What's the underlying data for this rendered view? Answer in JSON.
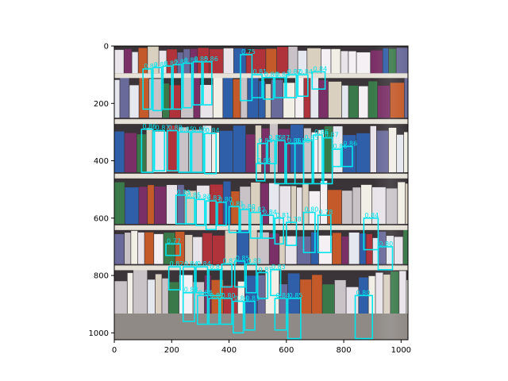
{
  "chart_data": {
    "type": "image-detections",
    "title": "",
    "xlabel": "",
    "ylabel": "",
    "xlim": [
      0,
      1024
    ],
    "ylim": [
      1024,
      0
    ],
    "x_ticks": [
      0,
      200,
      400,
      600,
      800,
      1000
    ],
    "y_ticks": [
      0,
      200,
      400,
      600,
      800,
      1000
    ],
    "box_color": "#00e5ee",
    "image_description_colors": {
      "shelf": "#e6e2d8",
      "shadow": "#2a2a30"
    },
    "detections": [
      {
        "x": 100,
        "y": 80,
        "w": 30,
        "h": 140,
        "score": "0.84"
      },
      {
        "x": 135,
        "y": 75,
        "w": 30,
        "h": 150,
        "score": "0.85"
      },
      {
        "x": 170,
        "y": 70,
        "w": 30,
        "h": 150,
        "score": "0.87"
      },
      {
        "x": 205,
        "y": 65,
        "w": 30,
        "h": 155,
        "score": "0.88"
      },
      {
        "x": 240,
        "y": 60,
        "w": 30,
        "h": 155,
        "score": "0.86"
      },
      {
        "x": 275,
        "y": 55,
        "w": 30,
        "h": 150,
        "score": "0.85"
      },
      {
        "x": 310,
        "y": 55,
        "w": 30,
        "h": 150,
        "score": "0.86"
      },
      {
        "x": 440,
        "y": 30,
        "w": 40,
        "h": 160,
        "score": "0.75"
      },
      {
        "x": 480,
        "y": 100,
        "w": 35,
        "h": 80,
        "score": "0.81"
      },
      {
        "x": 520,
        "y": 110,
        "w": 35,
        "h": 75,
        "score": "0.80"
      },
      {
        "x": 560,
        "y": 110,
        "w": 35,
        "h": 70,
        "score": "0.83"
      },
      {
        "x": 600,
        "y": 100,
        "w": 35,
        "h": 80,
        "score": "0.82"
      },
      {
        "x": 640,
        "y": 100,
        "w": 35,
        "h": 75,
        "score": "0.84"
      },
      {
        "x": 690,
        "y": 90,
        "w": 45,
        "h": 60,
        "score": "0.84"
      },
      {
        "x": 95,
        "y": 290,
        "w": 40,
        "h": 150,
        "score": "0.86"
      },
      {
        "x": 140,
        "y": 295,
        "w": 35,
        "h": 140,
        "score": "0.87"
      },
      {
        "x": 185,
        "y": 295,
        "w": 35,
        "h": 140,
        "score": "0.88"
      },
      {
        "x": 225,
        "y": 300,
        "w": 40,
        "h": 140,
        "score": "0.85"
      },
      {
        "x": 270,
        "y": 300,
        "w": 40,
        "h": 140,
        "score": "0.86"
      },
      {
        "x": 315,
        "y": 305,
        "w": 40,
        "h": 140,
        "score": "0.84"
      },
      {
        "x": 500,
        "y": 340,
        "w": 30,
        "h": 70,
        "score": "0.84"
      },
      {
        "x": 535,
        "y": 330,
        "w": 30,
        "h": 80,
        "score": "0.85"
      },
      {
        "x": 560,
        "y": 330,
        "w": 35,
        "h": 150,
        "score": "0.87"
      },
      {
        "x": 600,
        "y": 340,
        "w": 30,
        "h": 140,
        "score": "0.86"
      },
      {
        "x": 630,
        "y": 340,
        "w": 30,
        "h": 140,
        "score": "0.88"
      },
      {
        "x": 660,
        "y": 330,
        "w": 30,
        "h": 150,
        "score": "0.85"
      },
      {
        "x": 695,
        "y": 310,
        "w": 30,
        "h": 170,
        "score": "0.86"
      },
      {
        "x": 730,
        "y": 320,
        "w": 30,
        "h": 160,
        "score": "0.87"
      },
      {
        "x": 760,
        "y": 360,
        "w": 30,
        "h": 60,
        "score": "0.86"
      },
      {
        "x": 795,
        "y": 350,
        "w": 35,
        "h": 70,
        "score": "0.86"
      },
      {
        "x": 495,
        "y": 410,
        "w": 30,
        "h": 60,
        "score": "0.84"
      },
      {
        "x": 215,
        "y": 520,
        "w": 35,
        "h": 100,
        "score": "0.85"
      },
      {
        "x": 250,
        "y": 530,
        "w": 30,
        "h": 90,
        "score": "0.85"
      },
      {
        "x": 285,
        "y": 535,
        "w": 30,
        "h": 90,
        "score": "0.82"
      },
      {
        "x": 320,
        "y": 540,
        "w": 35,
        "h": 100,
        "score": "0.83"
      },
      {
        "x": 360,
        "y": 545,
        "w": 30,
        "h": 80,
        "score": "0.80"
      },
      {
        "x": 400,
        "y": 560,
        "w": 35,
        "h": 90,
        "score": "0.81"
      },
      {
        "x": 440,
        "y": 570,
        "w": 30,
        "h": 80,
        "score": "0.80"
      },
      {
        "x": 475,
        "y": 580,
        "w": 35,
        "h": 90,
        "score": "0.82"
      },
      {
        "x": 515,
        "y": 590,
        "w": 40,
        "h": 80,
        "score": "0.84"
      },
      {
        "x": 560,
        "y": 600,
        "w": 30,
        "h": 90,
        "score": "0.81"
      },
      {
        "x": 600,
        "y": 615,
        "w": 35,
        "h": 80,
        "score": "0.78"
      },
      {
        "x": 660,
        "y": 580,
        "w": 40,
        "h": 140,
        "score": "0.80"
      },
      {
        "x": 710,
        "y": 590,
        "w": 45,
        "h": 130,
        "score": "0.78"
      },
      {
        "x": 870,
        "y": 600,
        "w": 50,
        "h": 110,
        "score": "0.84"
      },
      {
        "x": 920,
        "y": 700,
        "w": 50,
        "h": 80,
        "score": "0.80"
      },
      {
        "x": 180,
        "y": 690,
        "w": 50,
        "h": 40,
        "score": "0.77"
      },
      {
        "x": 190,
        "y": 770,
        "w": 40,
        "h": 80,
        "score": "0.82"
      },
      {
        "x": 240,
        "y": 770,
        "w": 40,
        "h": 90,
        "score": "0.84"
      },
      {
        "x": 285,
        "y": 770,
        "w": 40,
        "h": 90,
        "score": "0.84"
      },
      {
        "x": 330,
        "y": 780,
        "w": 40,
        "h": 90,
        "score": "0.81"
      },
      {
        "x": 375,
        "y": 760,
        "w": 35,
        "h": 80,
        "score": "0.82"
      },
      {
        "x": 420,
        "y": 750,
        "w": 35,
        "h": 90,
        "score": "0.85"
      },
      {
        "x": 460,
        "y": 760,
        "w": 35,
        "h": 100,
        "score": "0.83"
      },
      {
        "x": 500,
        "y": 790,
        "w": 35,
        "h": 90,
        "score": "0.81"
      },
      {
        "x": 545,
        "y": 780,
        "w": 35,
        "h": 90,
        "score": "0.83"
      },
      {
        "x": 240,
        "y": 860,
        "w": 40,
        "h": 100,
        "score": "0.83"
      },
      {
        "x": 290,
        "y": 870,
        "w": 35,
        "h": 100,
        "score": "0.84"
      },
      {
        "x": 330,
        "y": 880,
        "w": 35,
        "h": 90,
        "score": "0.82"
      },
      {
        "x": 370,
        "y": 880,
        "w": 40,
        "h": 90,
        "score": "0.80"
      },
      {
        "x": 415,
        "y": 890,
        "w": 35,
        "h": 110,
        "score": "0.84"
      },
      {
        "x": 455,
        "y": 890,
        "w": 35,
        "h": 100,
        "score": "0.83"
      },
      {
        "x": 560,
        "y": 880,
        "w": 40,
        "h": 110,
        "score": "0.84"
      },
      {
        "x": 605,
        "y": 880,
        "w": 45,
        "h": 140,
        "score": "0.85"
      },
      {
        "x": 840,
        "y": 870,
        "w": 60,
        "h": 150,
        "score": "0.80"
      }
    ]
  }
}
